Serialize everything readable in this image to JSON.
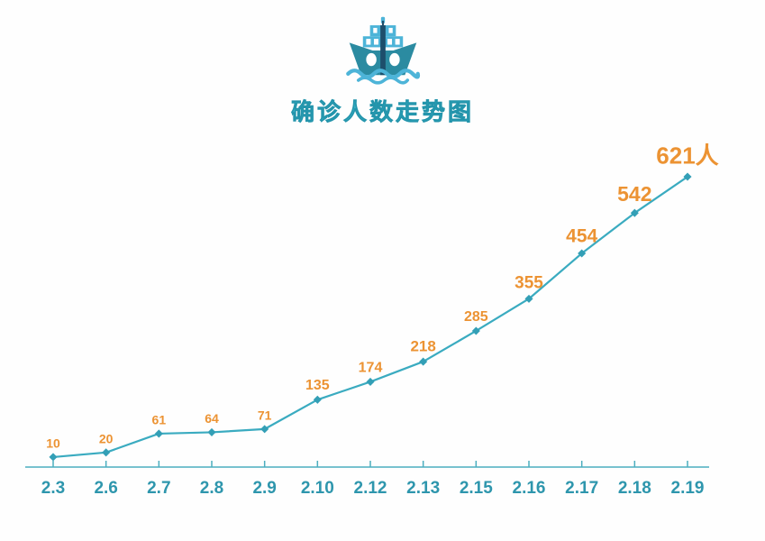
{
  "header": {
    "title": "确诊人数走势图"
  },
  "colors": {
    "background": "#fefefe",
    "title": "#35aec3",
    "title_stroke": "#2394ab",
    "line": "#3aabc0",
    "marker": "#339fb6",
    "axis": "#4caebf",
    "tick_label": "#2e96ad",
    "data_label": "#ec9333",
    "ship_light": "#4db4d8",
    "ship_dark": "#2b8ba1",
    "ship_navy": "#1d4e6b",
    "ship_window": "#ffffff"
  },
  "icons": {
    "ship": "ship-icon"
  },
  "chart_data": {
    "type": "line",
    "title": "确诊人数走势图",
    "categories": [
      "2.3",
      "2.6",
      "2.7",
      "2.8",
      "2.9",
      "2.10",
      "2.12",
      "2.13",
      "2.15",
      "2.16",
      "2.17",
      "2.18",
      "2.19"
    ],
    "values": [
      10,
      20,
      61,
      64,
      71,
      135,
      174,
      218,
      285,
      355,
      454,
      542,
      621
    ],
    "value_labels": [
      "10",
      "20",
      "61",
      "64",
      "71",
      "135",
      "174",
      "218",
      "285",
      "355",
      "454",
      "542",
      "621人"
    ],
    "unit_suffix_on_last": "人",
    "label_font_sizes": [
      14,
      14,
      14,
      14,
      14,
      16,
      16,
      17,
      16,
      19,
      21,
      23,
      26
    ],
    "xlabel": "",
    "ylabel": "",
    "ylim": [
      0,
      621
    ],
    "grid": false,
    "legend": "none",
    "marker_shape": "diamond",
    "y_axis_visible": false,
    "x_axis_visible": true
  }
}
